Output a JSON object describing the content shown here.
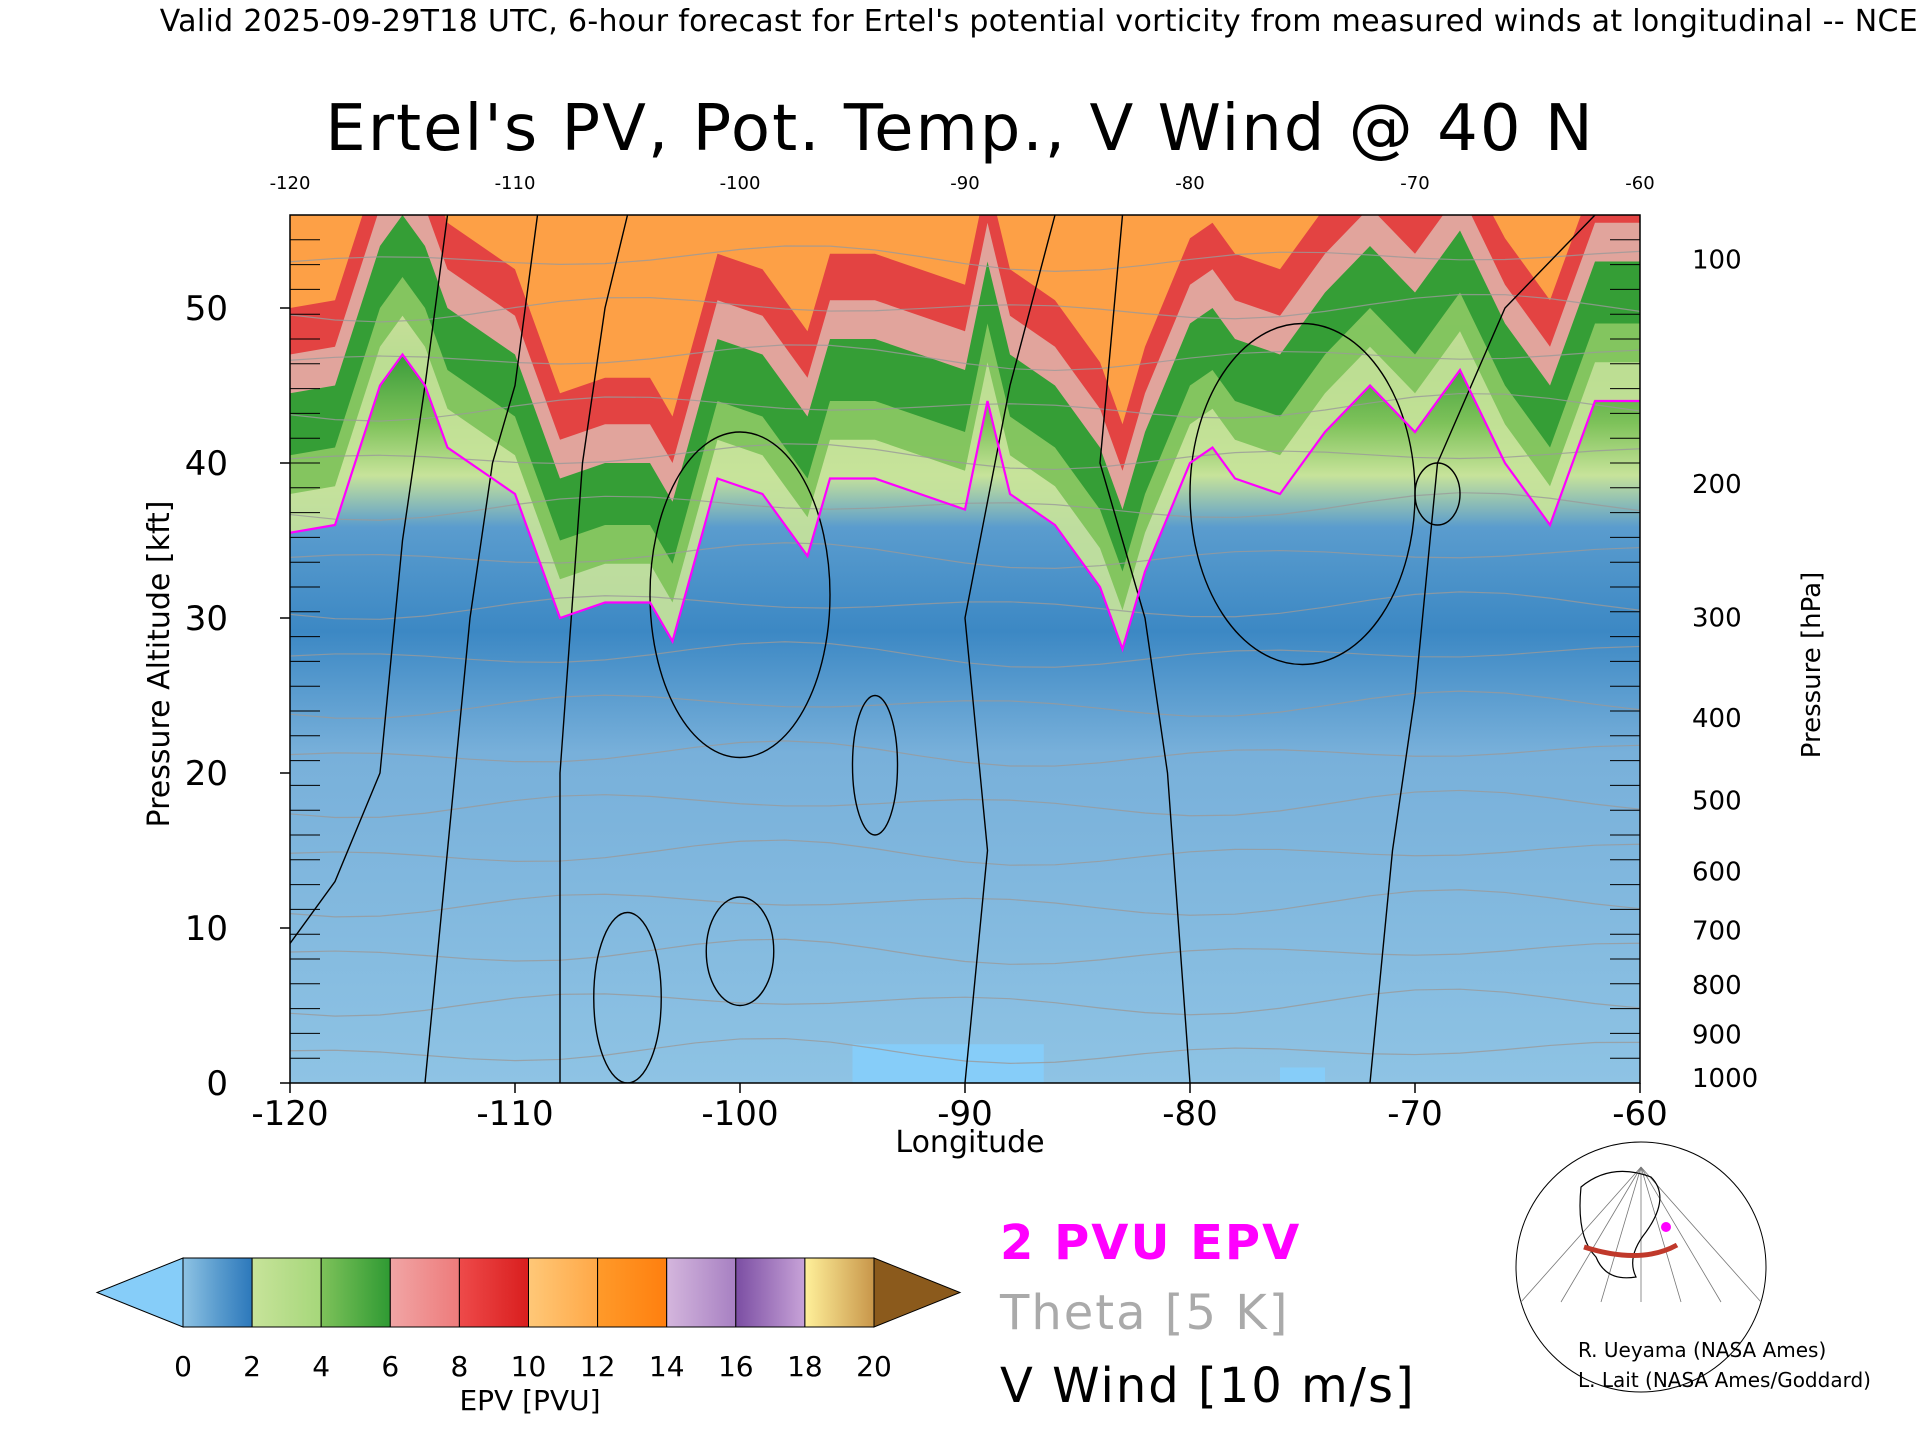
{
  "header_text": "Valid 2025-09-29T18 UTC, 6-hour forecast for Ertel's potential vorticity from measured winds at longitudinal -- NCE",
  "chart_data": {
    "type": "heatmap",
    "title": "Ertel's PV, Pot. Temp., V Wind @ 40 N",
    "xlabel": "Longitude",
    "ylabel": "Pressure Altitude [kft]",
    "y2label": "Pressure [hPa]",
    "xlim": [
      -120,
      -60
    ],
    "ylim": [
      0,
      56
    ],
    "x_ticks": [
      "-120",
      "-110",
      "-100",
      "-90",
      "-80",
      "-70",
      "-60"
    ],
    "x_ticks_top": [
      "-120",
      "-110",
      "-100",
      "-90",
      "-80",
      "-70",
      "-60"
    ],
    "y_ticks": [
      {
        "value": 0,
        "label": "0"
      },
      {
        "value": 10,
        "label": "10"
      },
      {
        "value": 20,
        "label": "20"
      },
      {
        "value": 30,
        "label": "30"
      },
      {
        "value": 40,
        "label": "40"
      },
      {
        "value": 50,
        "label": "50"
      }
    ],
    "pressure_ticks": [
      {
        "kft": 0.4,
        "label": "1000"
      },
      {
        "kft": 3.2,
        "label": "900"
      },
      {
        "kft": 6.4,
        "label": "800"
      },
      {
        "kft": 9.9,
        "label": "700"
      },
      {
        "kft": 13.7,
        "label": "600"
      },
      {
        "kft": 18.3,
        "label": "500"
      },
      {
        "kft": 23.6,
        "label": "400"
      },
      {
        "kft": 30.1,
        "label": "300"
      },
      {
        "kft": 38.7,
        "label": "200"
      },
      {
        "kft": 53.2,
        "label": "100"
      }
    ],
    "tropopause_2pvu_kft": [
      {
        "lon": -120,
        "kft": 35.5
      },
      {
        "lon": -118,
        "kft": 36
      },
      {
        "lon": -116,
        "kft": 45
      },
      {
        "lon": -115,
        "kft": 47
      },
      {
        "lon": -114,
        "kft": 45
      },
      {
        "lon": -113,
        "kft": 41
      },
      {
        "lon": -111,
        "kft": 39
      },
      {
        "lon": -110,
        "kft": 38
      },
      {
        "lon": -108,
        "kft": 30
      },
      {
        "lon": -106,
        "kft": 31
      },
      {
        "lon": -104,
        "kft": 31
      },
      {
        "lon": -103,
        "kft": 28.5
      },
      {
        "lon": -101,
        "kft": 39
      },
      {
        "lon": -99,
        "kft": 38
      },
      {
        "lon": -97,
        "kft": 34
      },
      {
        "lon": -96,
        "kft": 39
      },
      {
        "lon": -94,
        "kft": 39
      },
      {
        "lon": -92,
        "kft": 38
      },
      {
        "lon": -90,
        "kft": 37
      },
      {
        "lon": -89,
        "kft": 44
      },
      {
        "lon": -88,
        "kft": 38
      },
      {
        "lon": -86,
        "kft": 36
      },
      {
        "lon": -84,
        "kft": 32
      },
      {
        "lon": -83,
        "kft": 28
      },
      {
        "lon": -82,
        "kft": 33
      },
      {
        "lon": -80,
        "kft": 40
      },
      {
        "lon": -79,
        "kft": 41
      },
      {
        "lon": -78,
        "kft": 39
      },
      {
        "lon": -76,
        "kft": 38
      },
      {
        "lon": -74,
        "kft": 42
      },
      {
        "lon": -72,
        "kft": 45
      },
      {
        "lon": -70,
        "kft": 42
      },
      {
        "lon": -68,
        "kft": 46
      },
      {
        "lon": -66,
        "kft": 40
      },
      {
        "lon": -64,
        "kft": 36
      },
      {
        "lon": -62,
        "kft": 44
      },
      {
        "lon": -60,
        "kft": 44
      }
    ],
    "theta_contour_interval_K": 5,
    "vwind_contour_interval_ms": 10,
    "colorbar": {
      "label": "EPV [PVU]",
      "min": 0,
      "max": 20,
      "extend": "both",
      "tick_labels": [
        "0",
        "2",
        "4",
        "6",
        "8",
        "10",
        "12",
        "14",
        "16",
        "18",
        "20"
      ],
      "segments": [
        {
          "from": 0,
          "to": 2,
          "colors": [
            "#8ec3e4",
            "#5a9cce",
            "#2c78bb"
          ]
        },
        {
          "from": 2,
          "to": 4,
          "colors": [
            "#c7e39a",
            "#a6d77a"
          ]
        },
        {
          "from": 4,
          "to": 6,
          "colors": [
            "#7ec25a",
            "#2f9a33"
          ]
        },
        {
          "from": 6,
          "to": 8,
          "colors": [
            "#f0a5a5",
            "#ee7b7b"
          ]
        },
        {
          "from": 8,
          "to": 10,
          "colors": [
            "#ee4a4a",
            "#d91e1e"
          ]
        },
        {
          "from": 10,
          "to": 12,
          "colors": [
            "#ffc878",
            "#ffa847"
          ]
        },
        {
          "from": 12,
          "to": 14,
          "colors": [
            "#ff9a2a",
            "#ff7f0e"
          ]
        },
        {
          "from": 14,
          "to": 16,
          "colors": [
            "#d4b6dd",
            "#a780c2"
          ]
        },
        {
          "from": 16,
          "to": 18,
          "colors": [
            "#7b4ea3",
            "#c8a3d8"
          ]
        },
        {
          "from": 18,
          "to": 20,
          "colors": [
            "#fff09a",
            "#c8964a"
          ]
        }
      ],
      "under_color": "#86cdf9",
      "over_color": "#8b5a1c"
    },
    "colors": {
      "tropopause": "#ff00ff",
      "theta": "#9a9a9a",
      "vwind": "#000000"
    }
  },
  "legend": {
    "pvu": "2 PVU EPV",
    "theta": "Theta [5 K]",
    "vwind": "V Wind [10 m/s]"
  },
  "credits": {
    "line1": "R. Ueyama (NASA Ames)",
    "line2": "L. Lait (NASA Ames/Goddard)"
  },
  "inset_map": {
    "icon": "globe-map-icon",
    "section_color": "#c0392b",
    "marker_color": "#ff00ff"
  }
}
